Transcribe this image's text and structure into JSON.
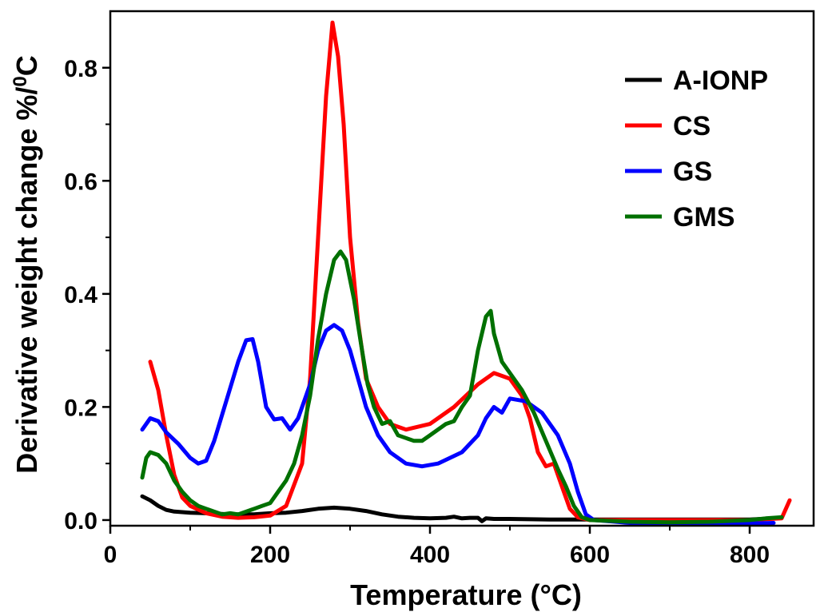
{
  "chart_data": {
    "type": "line",
    "title": "",
    "xlabel": "Temperature (°C)",
    "ylabel": "Derivative weight change %/",
    "ylabel_sup": "0",
    "ylabel_tail": "C",
    "xlim": [
      0,
      880
    ],
    "ylim": [
      -0.01,
      0.9
    ],
    "xticks": [
      0,
      200,
      400,
      600,
      800
    ],
    "xtick_labels": [
      "0",
      "200",
      "400",
      "600",
      "800"
    ],
    "yticks": [
      0.0,
      0.2,
      0.4,
      0.6,
      0.8
    ],
    "ytick_labels": [
      "0.0",
      "0.2",
      "0.4",
      "0.6",
      "0.8"
    ],
    "grid": false,
    "legend_position": "top-right",
    "series": [
      {
        "name": "A-IONP",
        "color": "#000000",
        "points": [
          [
            40,
            0.042
          ],
          [
            50,
            0.035
          ],
          [
            60,
            0.025
          ],
          [
            70,
            0.018
          ],
          [
            80,
            0.015
          ],
          [
            100,
            0.013
          ],
          [
            120,
            0.012
          ],
          [
            150,
            0.01
          ],
          [
            180,
            0.01
          ],
          [
            200,
            0.012
          ],
          [
            220,
            0.013
          ],
          [
            240,
            0.016
          ],
          [
            260,
            0.02
          ],
          [
            280,
            0.022
          ],
          [
            300,
            0.02
          ],
          [
            320,
            0.016
          ],
          [
            340,
            0.01
          ],
          [
            360,
            0.006
          ],
          [
            380,
            0.004
          ],
          [
            400,
            0.003
          ],
          [
            420,
            0.004
          ],
          [
            430,
            0.006
          ],
          [
            440,
            0.003
          ],
          [
            450,
            0.004
          ],
          [
            460,
            0.004
          ],
          [
            465,
            -0.002
          ],
          [
            470,
            0.003
          ],
          [
            480,
            0.002
          ],
          [
            500,
            0.002
          ],
          [
            550,
            0.001
          ],
          [
            600,
            0.001
          ],
          [
            650,
            0.001
          ],
          [
            700,
            0.001
          ],
          [
            750,
            0.001
          ],
          [
            800,
            0.001
          ],
          [
            830,
            0.003
          ]
        ]
      },
      {
        "name": "CS",
        "color": "#ff0000",
        "points": [
          [
            50,
            0.28
          ],
          [
            60,
            0.23
          ],
          [
            70,
            0.15
          ],
          [
            80,
            0.08
          ],
          [
            90,
            0.04
          ],
          [
            100,
            0.025
          ],
          [
            120,
            0.012
          ],
          [
            140,
            0.006
          ],
          [
            160,
            0.004
          ],
          [
            180,
            0.005
          ],
          [
            200,
            0.008
          ],
          [
            220,
            0.025
          ],
          [
            240,
            0.1
          ],
          [
            250,
            0.25
          ],
          [
            260,
            0.5
          ],
          [
            270,
            0.75
          ],
          [
            278,
            0.88
          ],
          [
            285,
            0.82
          ],
          [
            292,
            0.7
          ],
          [
            300,
            0.5
          ],
          [
            310,
            0.35
          ],
          [
            320,
            0.25
          ],
          [
            335,
            0.2
          ],
          [
            350,
            0.17
          ],
          [
            370,
            0.16
          ],
          [
            400,
            0.17
          ],
          [
            430,
            0.2
          ],
          [
            460,
            0.24
          ],
          [
            480,
            0.26
          ],
          [
            500,
            0.25
          ],
          [
            515,
            0.22
          ],
          [
            525,
            0.18
          ],
          [
            535,
            0.12
          ],
          [
            545,
            0.095
          ],
          [
            555,
            0.1
          ],
          [
            565,
            0.06
          ],
          [
            575,
            0.02
          ],
          [
            585,
            0.005
          ],
          [
            600,
            0.0
          ],
          [
            650,
            0.0
          ],
          [
            700,
            0.0
          ],
          [
            750,
            0.0
          ],
          [
            800,
            0.0
          ],
          [
            840,
            0.003
          ],
          [
            850,
            0.035
          ]
        ]
      },
      {
        "name": "GS",
        "color": "#0000ff",
        "points": [
          [
            40,
            0.16
          ],
          [
            50,
            0.18
          ],
          [
            60,
            0.175
          ],
          [
            70,
            0.155
          ],
          [
            85,
            0.135
          ],
          [
            100,
            0.11
          ],
          [
            110,
            0.1
          ],
          [
            120,
            0.105
          ],
          [
            130,
            0.14
          ],
          [
            145,
            0.21
          ],
          [
            160,
            0.28
          ],
          [
            170,
            0.318
          ],
          [
            178,
            0.32
          ],
          [
            185,
            0.28
          ],
          [
            195,
            0.2
          ],
          [
            205,
            0.178
          ],
          [
            215,
            0.18
          ],
          [
            225,
            0.16
          ],
          [
            235,
            0.18
          ],
          [
            250,
            0.24
          ],
          [
            260,
            0.3
          ],
          [
            270,
            0.335
          ],
          [
            280,
            0.345
          ],
          [
            290,
            0.335
          ],
          [
            300,
            0.3
          ],
          [
            310,
            0.25
          ],
          [
            320,
            0.2
          ],
          [
            335,
            0.15
          ],
          [
            350,
            0.12
          ],
          [
            370,
            0.1
          ],
          [
            390,
            0.095
          ],
          [
            410,
            0.1
          ],
          [
            440,
            0.12
          ],
          [
            460,
            0.15
          ],
          [
            470,
            0.18
          ],
          [
            480,
            0.2
          ],
          [
            490,
            0.19
          ],
          [
            500,
            0.215
          ],
          [
            520,
            0.21
          ],
          [
            540,
            0.19
          ],
          [
            560,
            0.15
          ],
          [
            575,
            0.1
          ],
          [
            585,
            0.05
          ],
          [
            595,
            0.01
          ],
          [
            605,
            0.0
          ],
          [
            650,
            -0.005
          ],
          [
            700,
            -0.006
          ],
          [
            750,
            -0.006
          ],
          [
            800,
            -0.006
          ],
          [
            830,
            -0.005
          ]
        ]
      },
      {
        "name": "GMS",
        "color": "#007000",
        "points": [
          [
            40,
            0.075
          ],
          [
            45,
            0.11
          ],
          [
            50,
            0.12
          ],
          [
            60,
            0.115
          ],
          [
            70,
            0.1
          ],
          [
            80,
            0.07
          ],
          [
            90,
            0.05
          ],
          [
            100,
            0.035
          ],
          [
            110,
            0.025
          ],
          [
            120,
            0.02
          ],
          [
            130,
            0.015
          ],
          [
            140,
            0.01
          ],
          [
            150,
            0.012
          ],
          [
            160,
            0.01
          ],
          [
            170,
            0.015
          ],
          [
            180,
            0.02
          ],
          [
            190,
            0.025
          ],
          [
            200,
            0.03
          ],
          [
            210,
            0.05
          ],
          [
            220,
            0.07
          ],
          [
            230,
            0.1
          ],
          [
            240,
            0.15
          ],
          [
            250,
            0.22
          ],
          [
            260,
            0.32
          ],
          [
            270,
            0.4
          ],
          [
            280,
            0.46
          ],
          [
            288,
            0.475
          ],
          [
            295,
            0.46
          ],
          [
            305,
            0.39
          ],
          [
            315,
            0.3
          ],
          [
            322,
            0.24
          ],
          [
            330,
            0.2
          ],
          [
            340,
            0.17
          ],
          [
            350,
            0.175
          ],
          [
            360,
            0.15
          ],
          [
            370,
            0.145
          ],
          [
            380,
            0.14
          ],
          [
            390,
            0.14
          ],
          [
            400,
            0.15
          ],
          [
            410,
            0.16
          ],
          [
            420,
            0.17
          ],
          [
            430,
            0.175
          ],
          [
            440,
            0.2
          ],
          [
            450,
            0.22
          ],
          [
            460,
            0.3
          ],
          [
            470,
            0.36
          ],
          [
            476,
            0.37
          ],
          [
            480,
            0.33
          ],
          [
            490,
            0.28
          ],
          [
            500,
            0.26
          ],
          [
            515,
            0.23
          ],
          [
            530,
            0.19
          ],
          [
            545,
            0.14
          ],
          [
            560,
            0.09
          ],
          [
            570,
            0.06
          ],
          [
            580,
            0.025
          ],
          [
            590,
            0.005
          ],
          [
            600,
            0.0
          ],
          [
            650,
            -0.003
          ],
          [
            700,
            -0.004
          ],
          [
            750,
            -0.003
          ],
          [
            800,
            0.0
          ],
          [
            820,
            0.003
          ],
          [
            840,
            0.005
          ]
        ]
      }
    ]
  }
}
